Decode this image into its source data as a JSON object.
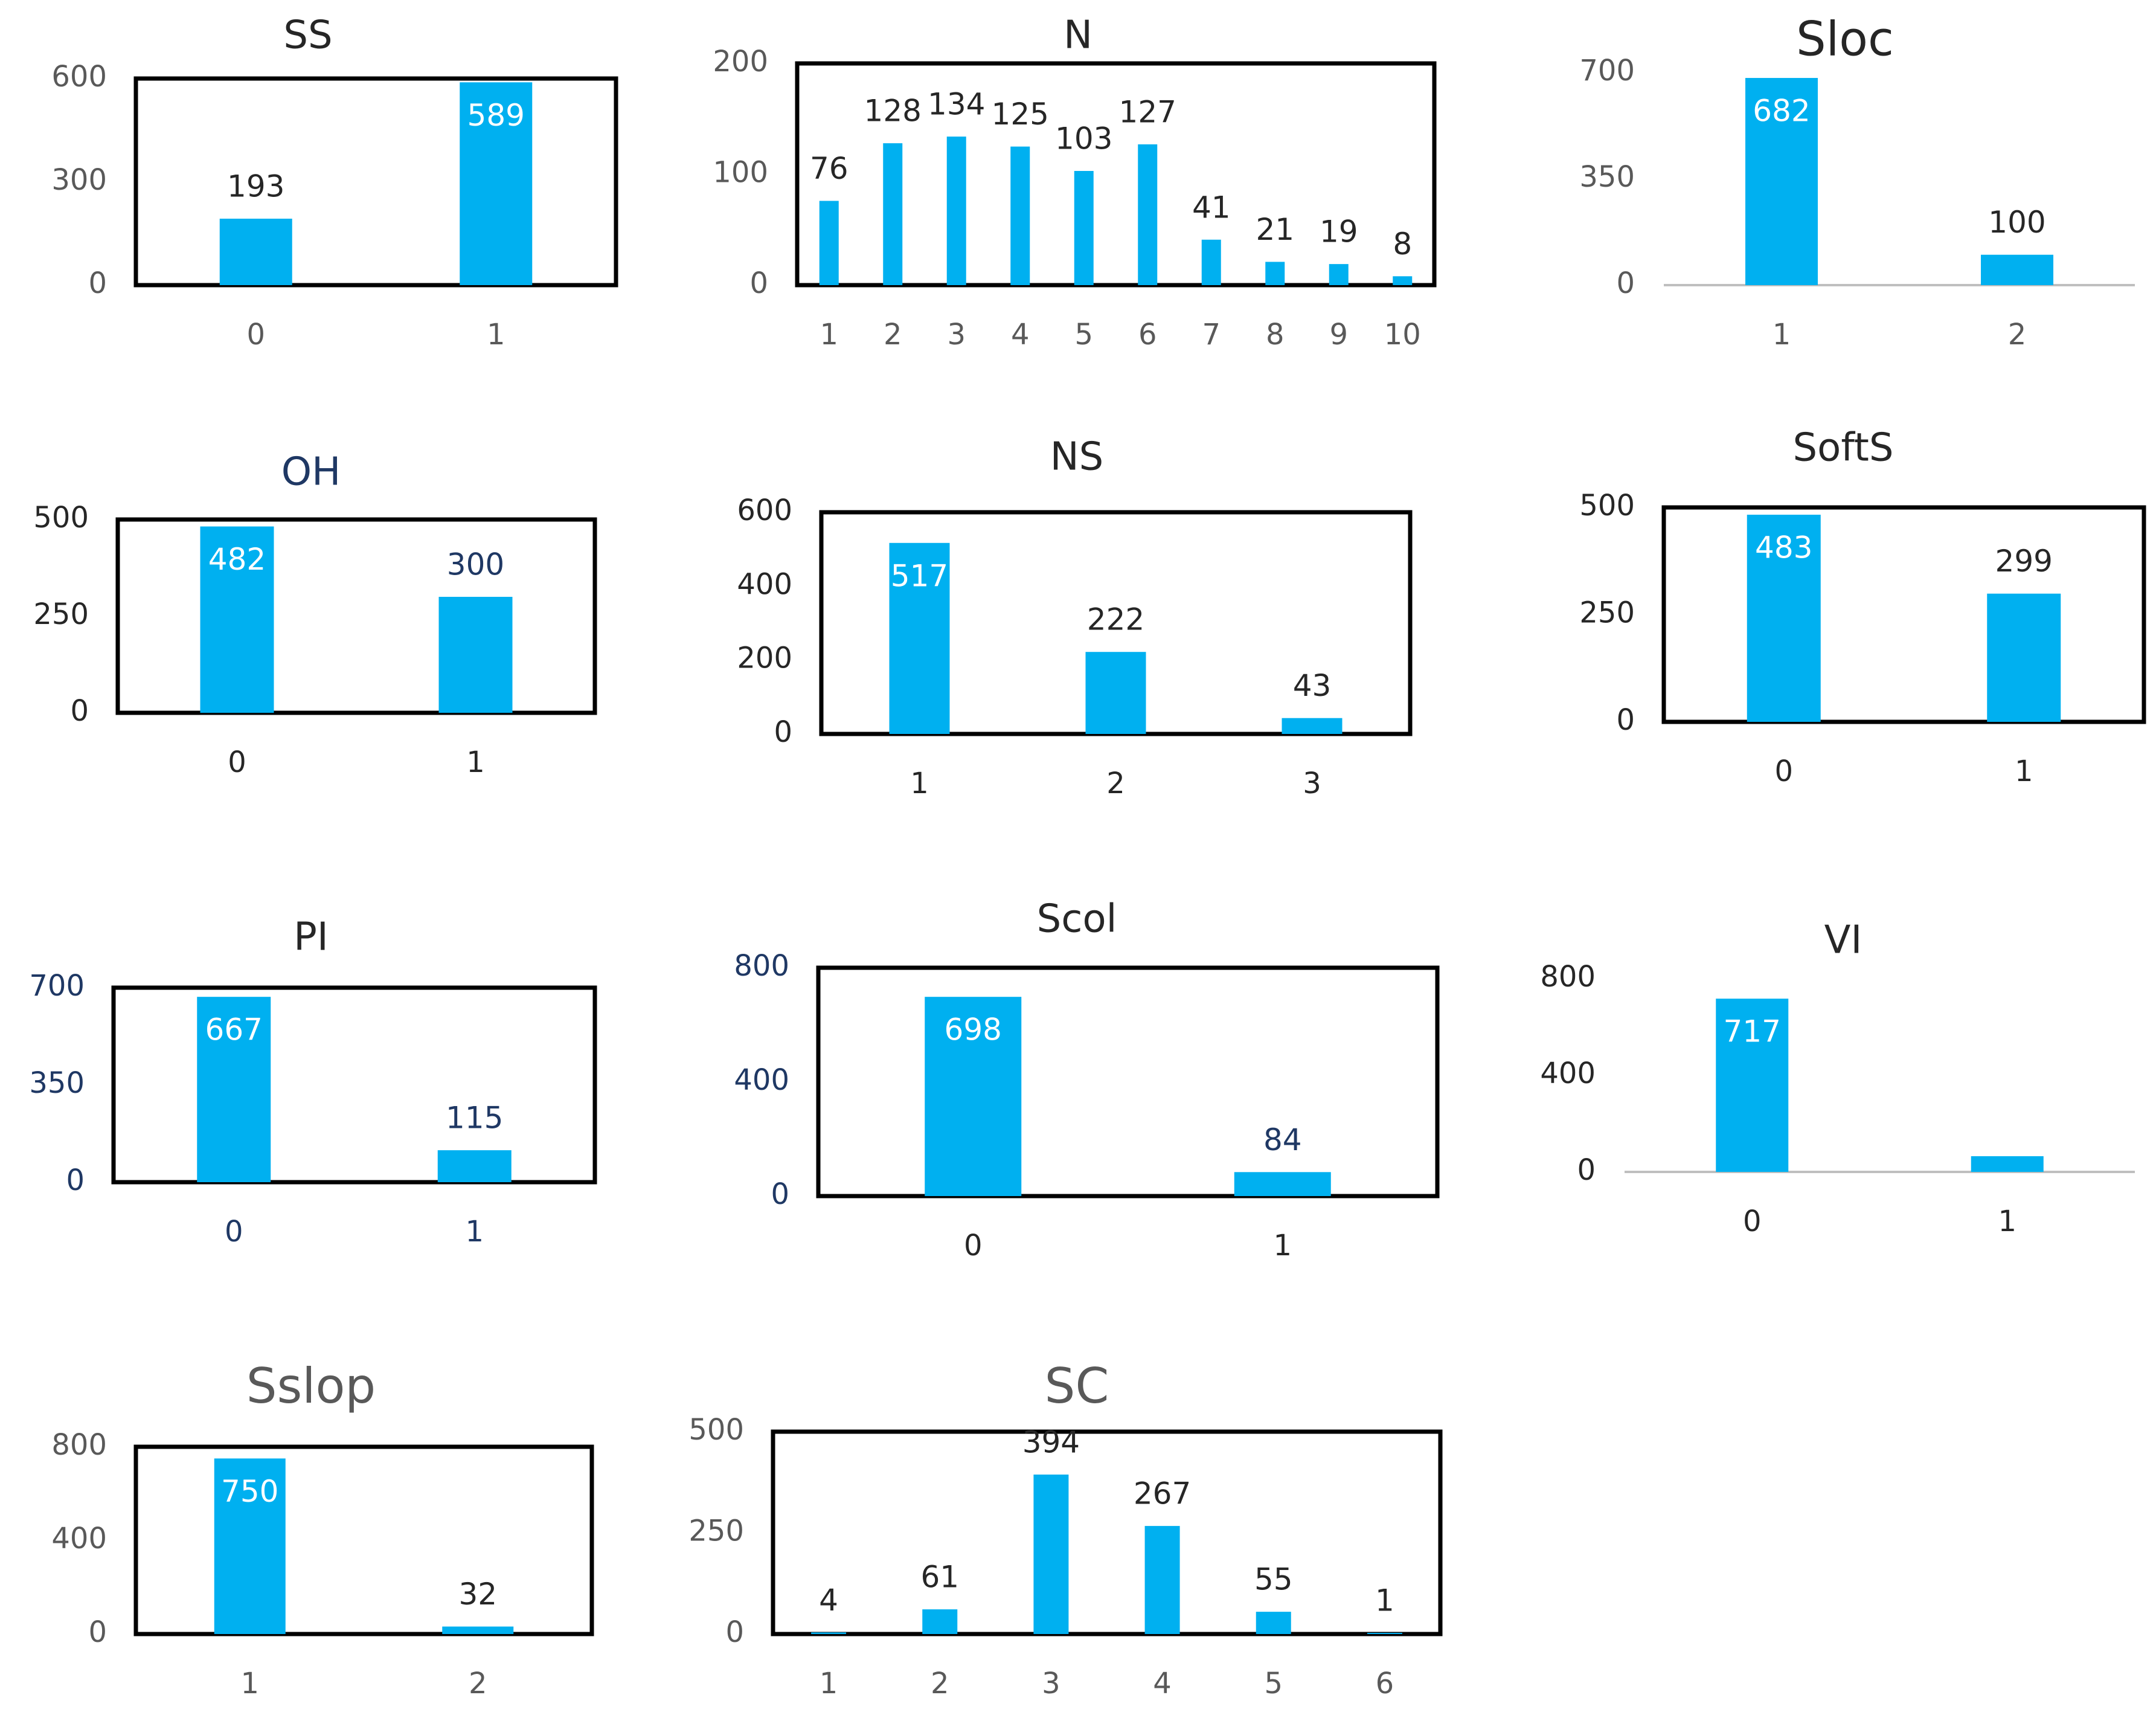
{
  "chart_data": [
    {
      "type": "bar",
      "title": "SS",
      "categories": [
        "0",
        "1"
      ],
      "values": [
        193,
        589
      ],
      "labels": [
        "193",
        "589"
      ],
      "yticks": [
        "0",
        "300",
        "600"
      ],
      "ylim": [
        0,
        600
      ],
      "box": true
    },
    {
      "type": "bar",
      "title": "N",
      "categories": [
        "1",
        "2",
        "3",
        "4",
        "5",
        "6",
        "7",
        "8",
        "9",
        "10"
      ],
      "values": [
        76,
        128,
        134,
        125,
        103,
        127,
        41,
        21,
        19,
        8
      ],
      "labels": [
        "76",
        "128",
        "134",
        "125",
        "103",
        "127",
        "41",
        "21",
        "19",
        "8"
      ],
      "yticks": [
        "0",
        "100",
        "200"
      ],
      "ylim": [
        0,
        200
      ],
      "box": true
    },
    {
      "type": "bar",
      "title": "Sloc",
      "categories": [
        "1",
        "2"
      ],
      "values": [
        682,
        100
      ],
      "labels": [
        "682",
        "100"
      ],
      "yticks": [
        "0",
        "350",
        "700"
      ],
      "ylim": [
        0,
        700
      ],
      "box": false
    },
    {
      "type": "bar",
      "title": "OH",
      "categories": [
        "0",
        "1"
      ],
      "values": [
        482,
        300
      ],
      "labels": [
        "482",
        "300"
      ],
      "yticks": [
        "0",
        "250",
        "500"
      ],
      "ylim": [
        0,
        500
      ],
      "box": true
    },
    {
      "type": "bar",
      "title": "NS",
      "categories": [
        "1",
        "2",
        "3"
      ],
      "values": [
        517,
        222,
        43
      ],
      "labels": [
        "517",
        "222",
        "43"
      ],
      "yticks": [
        "0",
        "200",
        "400",
        "600"
      ],
      "ylim": [
        0,
        600
      ],
      "box": true
    },
    {
      "type": "bar",
      "title": "SoftS",
      "categories": [
        "0",
        "1"
      ],
      "values": [
        483,
        299
      ],
      "labels": [
        "483",
        "299"
      ],
      "yticks": [
        "0",
        "250",
        "500"
      ],
      "ylim": [
        0,
        500
      ],
      "box": true
    },
    {
      "type": "bar",
      "title": "PI",
      "categories": [
        "0",
        "1"
      ],
      "values": [
        667,
        115
      ],
      "labels": [
        "667",
        "115"
      ],
      "yticks": [
        "0",
        "350",
        "700"
      ],
      "ylim": [
        0,
        700
      ],
      "box": true
    },
    {
      "type": "bar",
      "title": "Scol",
      "categories": [
        "0",
        "1"
      ],
      "values": [
        698,
        84
      ],
      "labels": [
        "698",
        "84"
      ],
      "yticks": [
        "0",
        "400",
        "800"
      ],
      "ylim": [
        0,
        800
      ],
      "box": true
    },
    {
      "type": "bar",
      "title": "VI",
      "categories": [
        "0",
        "1"
      ],
      "values": [
        717,
        65
      ],
      "labels": [
        "717",
        ""
      ],
      "yticks": [
        "0",
        "400",
        "800"
      ],
      "ylim": [
        0,
        800
      ],
      "box": false
    },
    {
      "type": "bar",
      "title": "Sslop",
      "categories": [
        "1",
        "2"
      ],
      "values": [
        750,
        32
      ],
      "labels": [
        "750",
        "32"
      ],
      "yticks": [
        "0",
        "400",
        "800"
      ],
      "ylim": [
        0,
        800
      ],
      "box": true
    },
    {
      "type": "bar",
      "title": "SC",
      "categories": [
        "1",
        "2",
        "3",
        "4",
        "5",
        "6"
      ],
      "values": [
        4,
        61,
        394,
        267,
        55,
        1
      ],
      "labels": [
        "4",
        "61",
        "394",
        "267",
        "55",
        "1"
      ],
      "yticks": [
        "0",
        "250",
        "500"
      ],
      "ylim": [
        0,
        500
      ],
      "box": true
    }
  ],
  "colors": {
    "bar": "#00b0f0",
    "dark_text": "#262626",
    "navy_text": "#1f3864",
    "gray_text": "#595959",
    "value_in_bar": "#ffffff"
  }
}
